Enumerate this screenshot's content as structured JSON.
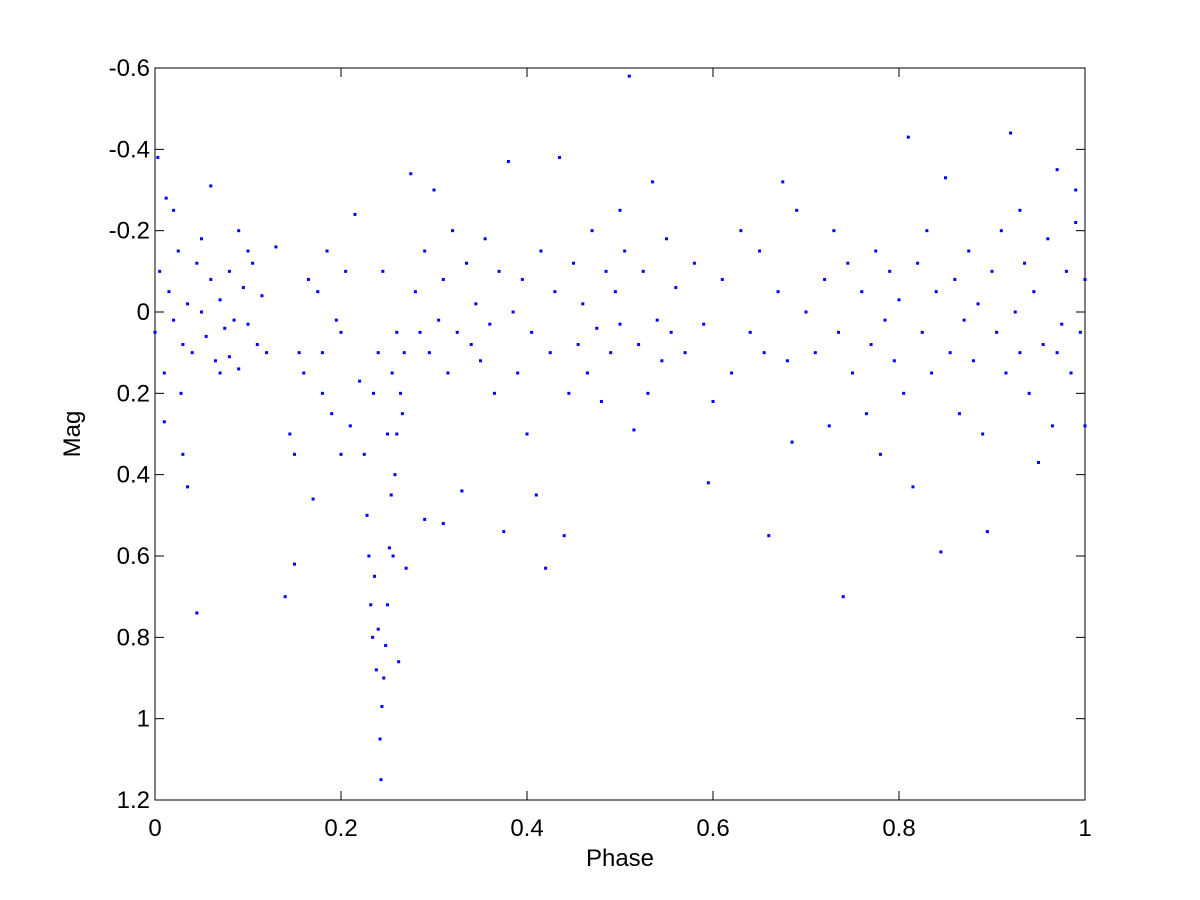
{
  "chart_data": {
    "type": "scatter",
    "xlabel": "Phase",
    "ylabel": "Mag",
    "xlim": [
      0,
      1
    ],
    "xticks": [
      0,
      0.2,
      0.4,
      0.6,
      0.8,
      1
    ],
    "ylim": [
      -0.6,
      1.2
    ],
    "yticks": [
      -0.6,
      -0.4,
      -0.2,
      0,
      0.2,
      0.4,
      0.6,
      0.8,
      1,
      1.2
    ],
    "y_inverted": true,
    "grid": false,
    "series": [
      {
        "color": "#0000ff",
        "x": [
          0.0,
          0.005,
          0.01,
          0.015,
          0.02,
          0.025,
          0.03,
          0.035,
          0.04,
          0.045,
          0.05,
          0.055,
          0.06,
          0.065,
          0.07,
          0.075,
          0.08,
          0.085,
          0.09,
          0.095,
          0.1,
          0.105,
          0.11,
          0.115,
          0.12,
          0.003,
          0.012,
          0.028,
          0.035,
          0.045,
          0.06,
          0.02,
          0.07,
          0.09,
          0.01,
          0.03,
          0.05,
          0.08,
          0.1,
          0.13,
          0.14,
          0.15,
          0.145,
          0.16,
          0.17,
          0.175,
          0.18,
          0.185,
          0.19,
          0.2,
          0.205,
          0.21,
          0.195,
          0.165,
          0.155,
          0.215,
          0.22,
          0.15,
          0.18,
          0.2,
          0.225,
          0.228,
          0.23,
          0.232,
          0.234,
          0.236,
          0.238,
          0.24,
          0.242,
          0.244,
          0.243,
          0.246,
          0.248,
          0.25,
          0.252,
          0.254,
          0.256,
          0.258,
          0.26,
          0.262,
          0.264,
          0.266,
          0.268,
          0.27,
          0.235,
          0.24,
          0.245,
          0.25,
          0.255,
          0.26,
          0.275,
          0.28,
          0.285,
          0.29,
          0.295,
          0.3,
          0.305,
          0.31,
          0.315,
          0.32,
          0.325,
          0.33,
          0.335,
          0.34,
          0.345,
          0.35,
          0.355,
          0.36,
          0.365,
          0.37,
          0.375,
          0.38,
          0.385,
          0.39,
          0.395,
          0.4,
          0.405,
          0.41,
          0.415,
          0.42,
          0.425,
          0.43,
          0.435,
          0.44,
          0.445,
          0.45,
          0.455,
          0.46,
          0.465,
          0.47,
          0.475,
          0.48,
          0.485,
          0.49,
          0.495,
          0.5,
          0.505,
          0.51,
          0.515,
          0.52,
          0.525,
          0.53,
          0.535,
          0.54,
          0.545,
          0.55,
          0.555,
          0.29,
          0.31,
          0.5,
          0.56,
          0.57,
          0.58,
          0.59,
          0.595,
          0.6,
          0.61,
          0.62,
          0.63,
          0.64,
          0.65,
          0.655,
          0.66,
          0.67,
          0.675,
          0.68,
          0.685,
          0.69,
          0.7,
          0.71,
          0.72,
          0.725,
          0.73,
          0.735,
          0.74,
          0.745,
          0.75,
          0.76,
          0.765,
          0.77,
          0.775,
          0.78,
          0.785,
          0.79,
          0.795,
          0.8,
          0.805,
          0.81,
          0.815,
          0.82,
          0.825,
          0.83,
          0.835,
          0.84,
          0.845,
          0.85,
          0.855,
          0.86,
          0.865,
          0.87,
          0.875,
          0.88,
          0.885,
          0.89,
          0.895,
          0.9,
          0.905,
          0.91,
          0.915,
          0.92,
          0.925,
          0.93,
          0.935,
          0.94,
          0.945,
          0.95,
          0.955,
          0.96,
          0.965,
          0.97,
          0.975,
          0.98,
          0.985,
          0.99,
          0.995,
          1.0,
          1.0,
          0.99,
          0.97,
          0.93
        ],
        "values": [
          0.05,
          -0.1,
          0.15,
          -0.05,
          0.02,
          -0.15,
          0.08,
          -0.02,
          0.1,
          -0.12,
          0.0,
          0.06,
          -0.08,
          0.12,
          -0.03,
          0.04,
          -0.1,
          0.02,
          0.14,
          -0.06,
          0.03,
          -0.12,
          0.08,
          -0.04,
          0.1,
          -0.38,
          -0.28,
          0.2,
          0.43,
          0.74,
          -0.31,
          -0.25,
          0.15,
          -0.2,
          0.27,
          0.35,
          -0.18,
          0.11,
          -0.15,
          -0.16,
          0.7,
          0.62,
          0.3,
          0.15,
          0.46,
          -0.05,
          0.1,
          -0.15,
          0.25,
          0.05,
          -0.1,
          0.28,
          0.02,
          -0.08,
          0.1,
          -0.24,
          0.17,
          0.35,
          0.2,
          0.35,
          0.35,
          0.5,
          0.6,
          0.72,
          0.8,
          0.65,
          0.88,
          0.78,
          1.05,
          0.97,
          1.15,
          0.9,
          0.82,
          0.72,
          0.58,
          0.45,
          0.6,
          0.4,
          0.3,
          0.86,
          0.2,
          0.25,
          0.1,
          0.63,
          0.2,
          0.1,
          -0.1,
          0.3,
          0.15,
          0.05,
          -0.34,
          -0.05,
          0.05,
          -0.15,
          0.1,
          -0.3,
          0.02,
          -0.08,
          0.15,
          -0.2,
          0.05,
          0.44,
          -0.12,
          0.08,
          -0.02,
          0.12,
          -0.18,
          0.03,
          0.2,
          -0.1,
          0.54,
          -0.37,
          0.0,
          0.15,
          -0.08,
          0.3,
          0.05,
          0.45,
          -0.15,
          0.63,
          0.1,
          -0.05,
          -0.38,
          0.55,
          0.2,
          -0.12,
          0.08,
          -0.02,
          0.15,
          -0.2,
          0.04,
          0.22,
          -0.1,
          0.1,
          -0.05,
          0.03,
          -0.15,
          -0.58,
          0.29,
          0.08,
          -0.1,
          0.2,
          -0.32,
          0.02,
          0.12,
          -0.18,
          0.05,
          0.51,
          0.52,
          -0.25,
          -0.06,
          0.1,
          -0.12,
          0.03,
          0.42,
          0.22,
          -0.08,
          0.15,
          -0.2,
          0.05,
          -0.15,
          0.1,
          0.55,
          -0.05,
          -0.32,
          0.12,
          0.32,
          -0.25,
          0.0,
          0.1,
          -0.08,
          0.28,
          -0.2,
          0.05,
          0.7,
          -0.12,
          0.15,
          -0.05,
          0.25,
          0.08,
          -0.15,
          0.35,
          0.02,
          -0.1,
          0.12,
          -0.03,
          0.2,
          -0.43,
          0.43,
          -0.12,
          0.05,
          -0.2,
          0.15,
          -0.05,
          0.59,
          -0.33,
          0.1,
          -0.08,
          0.25,
          0.02,
          -0.15,
          0.12,
          -0.02,
          0.3,
          0.54,
          -0.1,
          0.05,
          -0.2,
          0.15,
          -0.44,
          0.0,
          0.1,
          -0.12,
          0.2,
          -0.05,
          0.37,
          0.08,
          -0.18,
          0.28,
          -0.35,
          0.03,
          -0.1,
          0.15,
          -0.22,
          0.05,
          -0.08,
          0.28,
          -0.3,
          0.1,
          -0.25
        ]
      }
    ]
  }
}
